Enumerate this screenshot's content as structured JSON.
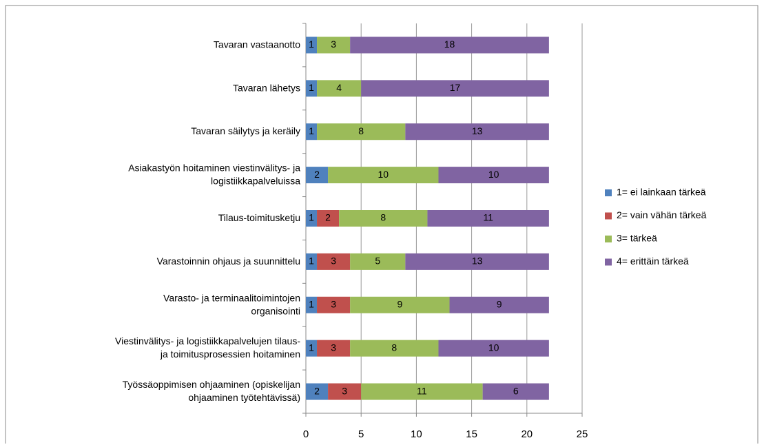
{
  "chart_data": {
    "type": "stacked-bar-horizontal",
    "categories": [
      "Tavaran vastaanotto",
      "Tavaran lähetys",
      "Tavaran säilytys ja keräily",
      "Asiakastyön hoitaminen viestinvälitys- ja\nlogistiikkapalveluissa",
      "Tilaus-toimitusketju",
      "Varastoinnin ohjaus ja suunnittelu",
      "Varasto- ja terminaalitoimintojen\norganisointi",
      "Viestinvälitys- ja logistiikkapalvelujen tilaus-\nja toimitusprosessien hoitaminen",
      "Työssäoppimisen ohjaaminen (opiskelijan\nohjaaminen työtehtävissä)"
    ],
    "series": [
      {
        "name": "1= ei lainkaan tärkeä",
        "color": "#4f81bd",
        "values": [
          1,
          1,
          1,
          2,
          1,
          1,
          1,
          1,
          2
        ]
      },
      {
        "name": "2= vain vähän tärkeä",
        "color": "#c0504d",
        "values": [
          0,
          0,
          0,
          0,
          2,
          3,
          3,
          3,
          3
        ]
      },
      {
        "name": "3= tärkeä",
        "color": "#9bbb59",
        "values": [
          3,
          4,
          8,
          10,
          8,
          5,
          9,
          8,
          11
        ]
      },
      {
        "name": "4= erittäin tärkeä",
        "color": "#8064a2",
        "values": [
          18,
          17,
          13,
          10,
          11,
          13,
          9,
          10,
          6
        ]
      }
    ],
    "xlim": [
      0,
      25
    ],
    "xticks": [
      0,
      5,
      10,
      15,
      20,
      25
    ],
    "grid": true,
    "legend": "right"
  }
}
